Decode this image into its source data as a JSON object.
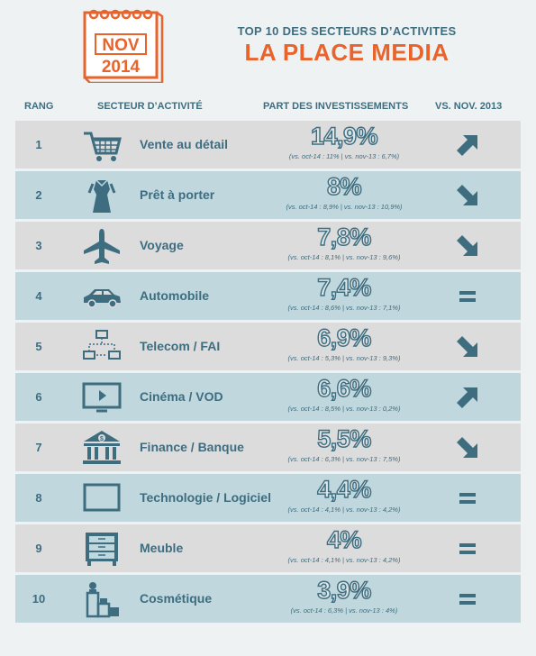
{
  "calendar": {
    "month": "NOV",
    "year": "2014"
  },
  "header": {
    "top": "TOP 10 DES SECTEURS D’ACTIVITES",
    "title": "LA PLACE MEDIA"
  },
  "columns": {
    "rang": "RANG",
    "secteur": "SECTEUR D’ACTIVITÉ",
    "part": "PART DES INVESTISSEMENTS",
    "vs": "VS. NOV. 2013"
  },
  "colors": {
    "accent": "#e8642c",
    "primary": "#3e6d80",
    "row_gray": "#dcdcdc",
    "row_blue": "#bfd7dd"
  },
  "rows": [
    {
      "rank": "1",
      "sector": "Vente au détail",
      "pct": "14,9%",
      "sub": "(vs. oct-14 : 11% | vs. nov-13 : 6,7%)",
      "trend": "up",
      "icon": "cart-icon"
    },
    {
      "rank": "2",
      "sector": "Prêt à porter",
      "pct": "8%",
      "sub": "(vs. oct-14 : 8,9% | vs. nov-13 : 10,9%)",
      "trend": "down",
      "icon": "dress-icon"
    },
    {
      "rank": "3",
      "sector": "Voyage",
      "pct": "7,8%",
      "sub": "(vs. oct-14 : 8,1% | vs. nov-13 : 9,6%)",
      "trend": "down",
      "icon": "plane-icon"
    },
    {
      "rank": "4",
      "sector": "Automobile",
      "pct": "7,4%",
      "sub": "(vs. oct-14 : 8,6% | vs. nov-13 : 7,1%)",
      "trend": "equal",
      "icon": "car-icon"
    },
    {
      "rank": "5",
      "sector": "Telecom / FAI",
      "pct": "6,9%",
      "sub": "(vs. oct-14 : 5,3% | vs. nov-13 : 9,3%)",
      "trend": "down",
      "icon": "network-icon"
    },
    {
      "rank": "6",
      "sector": "Cinéma / VOD",
      "pct": "6,6%",
      "sub": "(vs. oct-14 : 8,5% | vs. nov-13 : 0,2%)",
      "trend": "up",
      "icon": "tv-icon"
    },
    {
      "rank": "7",
      "sector": "Finance / Banque",
      "pct": "5,5%",
      "sub": "(vs. oct-14 : 6,3% | vs. nov-13 : 7,5%)",
      "trend": "down",
      "icon": "bank-icon"
    },
    {
      "rank": "8",
      "sector": "Technologie / Logiciel",
      "pct": "4,4%",
      "sub": "(vs. oct-14 : 4,1% | vs. nov-13 : 4,2%)",
      "trend": "equal",
      "icon": "screen-icon"
    },
    {
      "rank": "9",
      "sector": "Meuble",
      "pct": "4%",
      "sub": "(vs. oct-14 : 4,1% | vs. nov-13 : 4,2%)",
      "trend": "equal",
      "icon": "dresser-icon"
    },
    {
      "rank": "10",
      "sector": "Cosmétique",
      "pct": "3,9%",
      "sub": "(vs. oct-14 : 6,3% | vs. nov-13 : 4%)",
      "trend": "equal",
      "icon": "cosmetics-icon"
    }
  ]
}
